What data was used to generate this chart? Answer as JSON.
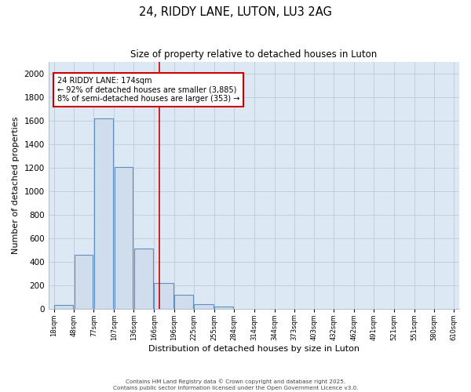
{
  "title": "24, RIDDY LANE, LUTON, LU3 2AG",
  "subtitle": "Size of property relative to detached houses in Luton",
  "xlabel": "Distribution of detached houses by size in Luton",
  "ylabel": "Number of detached properties",
  "bar_left_edges": [
    18,
    48,
    77,
    107,
    136,
    166,
    196,
    225,
    255,
    284,
    314,
    344,
    373,
    403,
    432,
    462,
    491,
    521,
    551,
    580
  ],
  "bar_widths": [
    29,
    28,
    29,
    28,
    29,
    29,
    28,
    29,
    28,
    29,
    29,
    28,
    29,
    28,
    29,
    28,
    29,
    29,
    28,
    29
  ],
  "bar_heights": [
    30,
    460,
    1620,
    1210,
    510,
    220,
    120,
    40,
    20,
    0,
    0,
    0,
    0,
    0,
    0,
    0,
    0,
    0,
    0,
    0
  ],
  "tick_labels": [
    "18sqm",
    "48sqm",
    "77sqm",
    "107sqm",
    "136sqm",
    "166sqm",
    "196sqm",
    "225sqm",
    "255sqm",
    "284sqm",
    "314sqm",
    "344sqm",
    "373sqm",
    "403sqm",
    "432sqm",
    "462sqm",
    "491sqm",
    "521sqm",
    "551sqm",
    "580sqm",
    "610sqm"
  ],
  "bar_color": "#cfdded",
  "bar_edge_color": "#6090c0",
  "vline_x": 174,
  "vline_color": "#cc0000",
  "annotation_text": "24 RIDDY LANE: 174sqm\n← 92% of detached houses are smaller (3,885)\n8% of semi-detached houses are larger (353) →",
  "annotation_box_color": "#ffffff",
  "annotation_box_edge": "#cc0000",
  "ylim": [
    0,
    2100
  ],
  "yticks": [
    0,
    200,
    400,
    600,
    800,
    1000,
    1200,
    1400,
    1600,
    1800,
    2000
  ],
  "grid_color": "#c0c8d8",
  "fig_bg_color": "#ffffff",
  "plot_bg_color": "#dce8f4",
  "footer_line1": "Contains HM Land Registry data © Crown copyright and database right 2025.",
  "footer_line2": "Contains public sector information licensed under the Open Government Licence v3.0."
}
